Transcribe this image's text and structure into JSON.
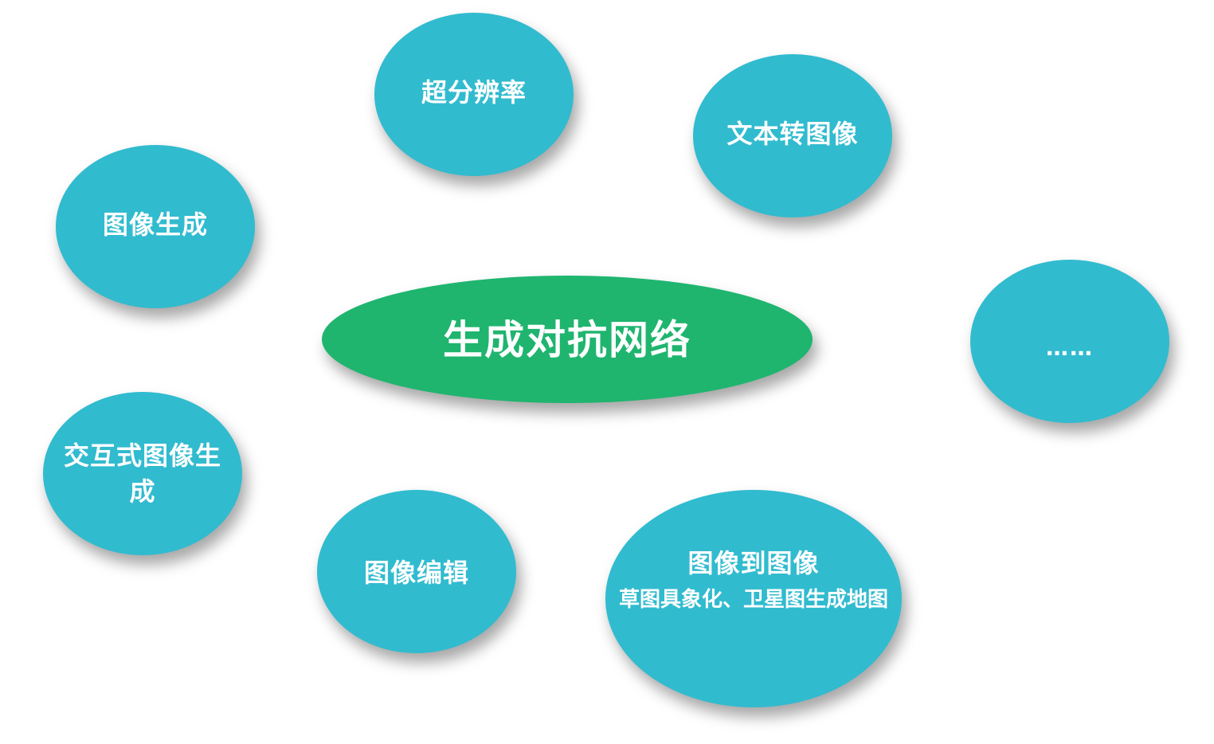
{
  "center": {
    "label": "生成对抗网络",
    "color": "#1fb56f"
  },
  "nodes": {
    "super_resolution": {
      "label": "超分辨率"
    },
    "text_to_image": {
      "label": "文本转图像"
    },
    "image_generation": {
      "label": "图像生成"
    },
    "more": {
      "label": "……"
    },
    "interactive_generation": {
      "label": "交互式图像生成"
    },
    "image_editing": {
      "label": "图像编辑"
    },
    "image_to_image": {
      "label": "图像到图像",
      "sublabel": "草图具象化、卫星图生成地图"
    }
  },
  "colors": {
    "node": "#31bbcf",
    "text": "#ffffff"
  }
}
